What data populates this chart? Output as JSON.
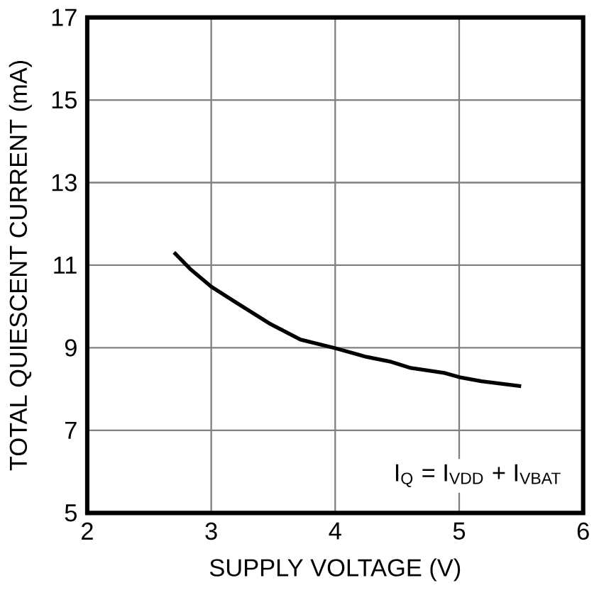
{
  "chart_data": {
    "type": "line",
    "xlabel": "SUPPLY VOLTAGE (V)",
    "ylabel": "TOTAL QUIESCENT CURRENT (mA)",
    "annotations": [
      "I$_{Q}$ = I$_{VDD}$ + I$_{VBAT}$"
    ],
    "x": [
      2.7,
      2.83,
      3.0,
      3.22,
      3.48,
      3.72,
      4.0,
      4.25,
      4.45,
      4.61,
      4.88,
      5.0,
      5.18,
      5.5
    ],
    "series": [
      {
        "color": "#000000",
        "values": [
          11.31,
          10.91,
          10.48,
          10.06,
          9.57,
          9.2,
          8.99,
          8.78,
          8.66,
          8.51,
          8.39,
          8.29,
          8.19,
          8.07
        ]
      }
    ],
    "xlim": [
      2,
      6
    ],
    "ylim": [
      5,
      17
    ],
    "xticks": [
      2,
      3,
      4,
      5,
      6
    ],
    "yticks": [
      5,
      7,
      9,
      11,
      13,
      15,
      17
    ],
    "grid": true,
    "marker": "none",
    "line_style": "solid"
  }
}
